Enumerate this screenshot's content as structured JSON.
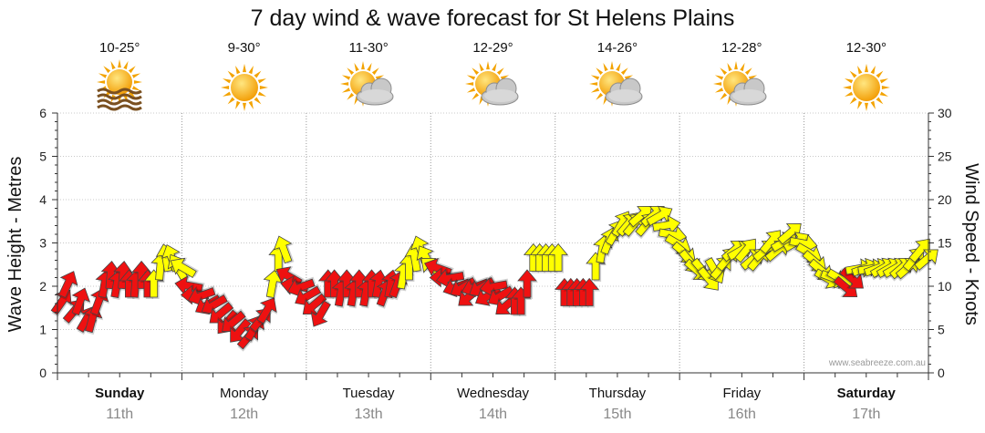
{
  "chart_data": {
    "type": "arrow-series",
    "title": "7 day wind & wave forecast for St Helens Plains",
    "ylabel_left": "Wave Height - Metres",
    "ylabel_right": "Wind Speed - Knots",
    "ylim_left": [
      0,
      6
    ],
    "ylim_right": [
      0,
      30
    ],
    "yticks_left": [
      "0",
      "1",
      "2",
      "3",
      "4",
      "5",
      "6"
    ],
    "yticks_right": [
      "0",
      "5",
      "10",
      "15",
      "20",
      "25",
      "30"
    ],
    "grid": true,
    "credit": "www.seabreeze.com.au",
    "days": [
      {
        "name": "Sunday",
        "date": "11th",
        "bold": true,
        "temp": "10-25°",
        "icon": "sun-fog-icon"
      },
      {
        "name": "Monday",
        "date": "12th",
        "bold": false,
        "temp": "9-30°",
        "icon": "sun-icon"
      },
      {
        "name": "Tuesday",
        "date": "13th",
        "bold": false,
        "temp": "11-30°",
        "icon": "sun-cloud-icon"
      },
      {
        "name": "Wednesday",
        "date": "14th",
        "bold": false,
        "temp": "12-29°",
        "icon": "sun-cloud-icon"
      },
      {
        "name": "Thursday",
        "date": "15th",
        "bold": false,
        "temp": "14-26°",
        "icon": "sun-cloud-icon"
      },
      {
        "name": "Friday",
        "date": "16th",
        "bold": false,
        "temp": "12-28°",
        "icon": "sun-cloud-icon"
      },
      {
        "name": "Saturday",
        "date": "17th",
        "bold": true,
        "temp": "12-30°",
        "icon": "sun-icon"
      }
    ],
    "series": [
      {
        "name": "Wind Speed (knots)",
        "colors": {
          "red": "#ee1111",
          "yellow": "#ffff00"
        },
        "points": [
          {
            "x": 0.05,
            "knots": 8,
            "dir": 35,
            "color": "red"
          },
          {
            "x": 0.15,
            "knots": 10,
            "dir": 25,
            "color": "red"
          },
          {
            "x": 0.25,
            "knots": 7,
            "dir": 40,
            "color": "red"
          },
          {
            "x": 0.35,
            "knots": 8,
            "dir": 20,
            "color": "red"
          },
          {
            "x": 0.45,
            "knots": 6,
            "dir": 30,
            "color": "red"
          },
          {
            "x": 0.55,
            "knots": 6,
            "dir": 15,
            "color": "red"
          },
          {
            "x": 0.65,
            "knots": 8,
            "dir": 20,
            "color": "red"
          },
          {
            "x": 0.75,
            "knots": 10,
            "dir": 10,
            "color": "red"
          },
          {
            "x": 0.85,
            "knots": 11,
            "dir": 5,
            "color": "red"
          },
          {
            "x": 0.95,
            "knots": 10,
            "dir": 10,
            "color": "red"
          },
          {
            "x": 1.05,
            "knots": 11,
            "dir": 5,
            "color": "red"
          },
          {
            "x": 1.15,
            "knots": 10,
            "dir": 0,
            "color": "red"
          },
          {
            "x": 1.25,
            "knots": 10,
            "dir": 5,
            "color": "red"
          },
          {
            "x": 1.35,
            "knots": 11,
            "dir": 0,
            "color": "red"
          },
          {
            "x": 1.45,
            "knots": 10,
            "dir": 0,
            "color": "red"
          },
          {
            "x": 1.55,
            "knots": 10,
            "dir": 0,
            "color": "yellow"
          },
          {
            "x": 1.65,
            "knots": 12,
            "dir": 5,
            "color": "yellow"
          },
          {
            "x": 1.75,
            "knots": 13,
            "dir": -10,
            "color": "yellow"
          },
          {
            "x": 1.85,
            "knots": 13,
            "dir": -20,
            "color": "yellow"
          },
          {
            "x": 1.95,
            "knots": 12,
            "dir": -30,
            "color": "yellow"
          },
          {
            "x": 2.05,
            "knots": 12,
            "dir": -60,
            "color": "yellow"
          },
          {
            "x": 2.15,
            "knots": 10,
            "dir": -80,
            "color": "red"
          },
          {
            "x": 2.25,
            "knots": 9,
            "dir": -90,
            "color": "red"
          },
          {
            "x": 2.35,
            "knots": 9,
            "dir": -110,
            "color": "red"
          },
          {
            "x": 2.45,
            "knots": 8,
            "dir": -120,
            "color": "red"
          },
          {
            "x": 2.55,
            "knots": 8,
            "dir": -120,
            "color": "red"
          },
          {
            "x": 2.65,
            "knots": 7,
            "dir": -130,
            "color": "red"
          },
          {
            "x": 2.75,
            "knots": 6,
            "dir": -140,
            "color": "red"
          },
          {
            "x": 2.85,
            "knots": 6,
            "dir": -130,
            "color": "red"
          },
          {
            "x": 2.95,
            "knots": 5,
            "dir": -140,
            "color": "red"
          },
          {
            "x": 3.05,
            "knots": 4,
            "dir": 40,
            "color": "red"
          },
          {
            "x": 3.15,
            "knots": 5,
            "dir": 30,
            "color": "red"
          },
          {
            "x": 3.25,
            "knots": 6,
            "dir": 40,
            "color": "red"
          },
          {
            "x": 3.35,
            "knots": 7,
            "dir": 30,
            "color": "red"
          },
          {
            "x": 3.45,
            "knots": 10,
            "dir": 10,
            "color": "yellow"
          },
          {
            "x": 3.55,
            "knots": 13,
            "dir": 0,
            "color": "yellow"
          },
          {
            "x": 3.65,
            "knots": 14,
            "dir": -20,
            "color": "yellow"
          },
          {
            "x": 3.75,
            "knots": 11,
            "dir": -60,
            "color": "red"
          },
          {
            "x": 3.85,
            "knots": 10,
            "dir": -80,
            "color": "red"
          },
          {
            "x": 3.95,
            "knots": 10,
            "dir": -110,
            "color": "red"
          },
          {
            "x": 4.05,
            "knots": 9,
            "dir": -120,
            "color": "red"
          },
          {
            "x": 4.15,
            "knots": 8,
            "dir": -130,
            "color": "red"
          },
          {
            "x": 4.25,
            "knots": 7,
            "dir": -150,
            "color": "red"
          },
          {
            "x": 4.35,
            "knots": 10,
            "dir": 0,
            "color": "red"
          },
          {
            "x": 4.45,
            "knots": 10,
            "dir": 0,
            "color": "red"
          },
          {
            "x": 4.55,
            "knots": 9,
            "dir": 10,
            "color": "red"
          },
          {
            "x": 4.65,
            "knots": 10,
            "dir": 0,
            "color": "red"
          },
          {
            "x": 4.75,
            "knots": 9,
            "dir": 10,
            "color": "red"
          },
          {
            "x": 4.85,
            "knots": 10,
            "dir": 0,
            "color": "red"
          },
          {
            "x": 4.95,
            "knots": 9,
            "dir": 10,
            "color": "red"
          },
          {
            "x": 5.05,
            "knots": 10,
            "dir": 0,
            "color": "red"
          },
          {
            "x": 5.15,
            "knots": 10,
            "dir": 10,
            "color": "red"
          },
          {
            "x": 5.25,
            "knots": 9,
            "dir": 20,
            "color": "red"
          },
          {
            "x": 5.35,
            "knots": 10,
            "dir": 10,
            "color": "red"
          },
          {
            "x": 5.45,
            "knots": 10,
            "dir": 20,
            "color": "red"
          },
          {
            "x": 5.55,
            "knots": 11,
            "dir": 10,
            "color": "yellow"
          },
          {
            "x": 5.65,
            "knots": 12,
            "dir": 0,
            "color": "yellow"
          },
          {
            "x": 5.75,
            "knots": 13,
            "dir": -10,
            "color": "yellow"
          },
          {
            "x": 5.85,
            "knots": 14,
            "dir": -20,
            "color": "yellow"
          },
          {
            "x": 5.95,
            "knots": 13,
            "dir": -30,
            "color": "yellow"
          },
          {
            "x": 6.05,
            "knots": 12,
            "dir": -50,
            "color": "yellow"
          },
          {
            "x": 6.15,
            "knots": 12,
            "dir": -70,
            "color": "red"
          },
          {
            "x": 6.25,
            "knots": 11,
            "dir": -90,
            "color": "red"
          },
          {
            "x": 6.35,
            "knots": 11,
            "dir": -100,
            "color": "red"
          },
          {
            "x": 6.45,
            "knots": 10,
            "dir": -110,
            "color": "red"
          },
          {
            "x": 6.55,
            "knots": 10,
            "dir": -120,
            "color": "red"
          },
          {
            "x": 6.65,
            "knots": 9,
            "dir": -130,
            "color": "red"
          },
          {
            "x": 6.75,
            "knots": 10,
            "dir": -110,
            "color": "red"
          },
          {
            "x": 6.85,
            "knots": 10,
            "dir": -120,
            "color": "red"
          },
          {
            "x": 6.95,
            "knots": 9,
            "dir": -120,
            "color": "red"
          },
          {
            "x": 7.05,
            "knots": 10,
            "dir": -100,
            "color": "red"
          },
          {
            "x": 7.15,
            "knots": 9,
            "dir": -120,
            "color": "red"
          },
          {
            "x": 7.25,
            "knots": 8,
            "dir": -130,
            "color": "red"
          },
          {
            "x": 7.35,
            "knots": 8,
            "dir": 0,
            "color": "red"
          },
          {
            "x": 7.45,
            "knots": 8,
            "dir": 0,
            "color": "red"
          },
          {
            "x": 7.55,
            "knots": 10,
            "dir": 0,
            "color": "red"
          },
          {
            "x": 7.65,
            "knots": 13,
            "dir": 0,
            "color": "yellow"
          },
          {
            "x": 7.75,
            "knots": 13,
            "dir": 0,
            "color": "yellow"
          },
          {
            "x": 7.85,
            "knots": 13,
            "dir": 0,
            "color": "yellow"
          },
          {
            "x": 7.95,
            "knots": 13,
            "dir": 0,
            "color": "yellow"
          },
          {
            "x": 8.05,
            "knots": 13,
            "dir": 0,
            "color": "yellow"
          },
          {
            "x": 8.15,
            "knots": 9,
            "dir": 0,
            "color": "red"
          },
          {
            "x": 8.25,
            "knots": 9,
            "dir": 0,
            "color": "red"
          },
          {
            "x": 8.35,
            "knots": 9,
            "dir": 0,
            "color": "red"
          },
          {
            "x": 8.45,
            "knots": 9,
            "dir": 0,
            "color": "red"
          },
          {
            "x": 8.55,
            "knots": 9,
            "dir": 0,
            "color": "red"
          },
          {
            "x": 8.65,
            "knots": 12,
            "dir": 0,
            "color": "yellow"
          },
          {
            "x": 8.75,
            "knots": 14,
            "dir": 10,
            "color": "yellow"
          },
          {
            "x": 8.85,
            "knots": 15,
            "dir": 20,
            "color": "yellow"
          },
          {
            "x": 8.95,
            "knots": 16,
            "dir": 30,
            "color": "yellow"
          },
          {
            "x": 9.05,
            "knots": 17,
            "dir": 30,
            "color": "yellow"
          },
          {
            "x": 9.15,
            "knots": 17,
            "dir": 40,
            "color": "yellow"
          },
          {
            "x": 9.25,
            "knots": 17,
            "dir": 40,
            "color": "yellow"
          },
          {
            "x": 9.35,
            "knots": 18,
            "dir": 50,
            "color": "yellow"
          },
          {
            "x": 9.45,
            "knots": 17,
            "dir": 40,
            "color": "yellow"
          },
          {
            "x": 9.55,
            "knots": 18,
            "dir": 50,
            "color": "yellow"
          },
          {
            "x": 9.65,
            "knots": 18,
            "dir": 60,
            "color": "yellow"
          },
          {
            "x": 9.75,
            "knots": 17,
            "dir": 80,
            "color": "yellow"
          },
          {
            "x": 9.85,
            "knots": 16,
            "dir": 100,
            "color": "yellow"
          },
          {
            "x": 9.95,
            "knots": 15,
            "dir": 120,
            "color": "yellow"
          },
          {
            "x": 10.05,
            "knots": 14,
            "dir": 130,
            "color": "yellow"
          },
          {
            "x": 10.15,
            "knots": 13,
            "dir": 140,
            "color": "yellow"
          },
          {
            "x": 10.25,
            "knots": 12,
            "dir": 130,
            "color": "yellow"
          },
          {
            "x": 10.35,
            "knots": 12,
            "dir": 140,
            "color": "yellow"
          },
          {
            "x": 10.45,
            "knots": 11,
            "dir": 140,
            "color": "yellow"
          },
          {
            "x": 10.55,
            "knots": 12,
            "dir": 150,
            "color": "yellow"
          },
          {
            "x": 10.65,
            "knots": 12,
            "dir": 40,
            "color": "yellow"
          },
          {
            "x": 10.75,
            "knots": 13,
            "dir": 40,
            "color": "yellow"
          },
          {
            "x": 10.85,
            "knots": 14,
            "dir": 50,
            "color": "yellow"
          },
          {
            "x": 10.95,
            "knots": 14,
            "dir": 60,
            "color": "yellow"
          },
          {
            "x": 11.05,
            "knots": 14,
            "dir": 40,
            "color": "yellow"
          },
          {
            "x": 11.15,
            "knots": 13,
            "dir": 50,
            "color": "yellow"
          },
          {
            "x": 11.25,
            "knots": 13,
            "dir": 40,
            "color": "yellow"
          },
          {
            "x": 11.35,
            "knots": 14,
            "dir": 50,
            "color": "yellow"
          },
          {
            "x": 11.45,
            "knots": 15,
            "dir": 40,
            "color": "yellow"
          },
          {
            "x": 11.55,
            "knots": 14,
            "dir": 50,
            "color": "yellow"
          },
          {
            "x": 11.65,
            "knots": 15,
            "dir": 60,
            "color": "yellow"
          },
          {
            "x": 11.75,
            "knots": 16,
            "dir": 50,
            "color": "yellow"
          },
          {
            "x": 11.85,
            "knots": 15,
            "dir": 60,
            "color": "yellow"
          },
          {
            "x": 11.95,
            "knots": 15,
            "dir": 100,
            "color": "yellow"
          },
          {
            "x": 12.05,
            "knots": 14,
            "dir": 120,
            "color": "yellow"
          },
          {
            "x": 12.15,
            "knots": 13,
            "dir": 130,
            "color": "yellow"
          },
          {
            "x": 12.25,
            "knots": 12,
            "dir": 130,
            "color": "yellow"
          },
          {
            "x": 12.35,
            "knots": 11,
            "dir": 120,
            "color": "yellow"
          },
          {
            "x": 12.45,
            "knots": 11,
            "dir": 110,
            "color": "yellow"
          },
          {
            "x": 12.55,
            "knots": 11,
            "dir": 120,
            "color": "yellow"
          },
          {
            "x": 12.65,
            "knots": 10,
            "dir": 130,
            "color": "red"
          },
          {
            "x": 12.75,
            "knots": 11,
            "dir": 130,
            "color": "red"
          },
          {
            "x": 12.85,
            "knots": 12,
            "dir": 80,
            "color": "yellow"
          },
          {
            "x": 12.95,
            "knots": 12,
            "dir": 70,
            "color": "yellow"
          },
          {
            "x": 13.05,
            "knots": 12,
            "dir": 80,
            "color": "yellow"
          },
          {
            "x": 13.15,
            "knots": 12,
            "dir": 70,
            "color": "yellow"
          },
          {
            "x": 13.25,
            "knots": 12,
            "dir": 60,
            "color": "yellow"
          },
          {
            "x": 13.35,
            "knots": 12,
            "dir": 60,
            "color": "yellow"
          },
          {
            "x": 13.45,
            "knots": 12,
            "dir": 60,
            "color": "yellow"
          },
          {
            "x": 13.55,
            "knots": 12,
            "dir": 50,
            "color": "yellow"
          },
          {
            "x": 13.65,
            "knots": 12,
            "dir": 50,
            "color": "yellow"
          },
          {
            "x": 13.75,
            "knots": 13,
            "dir": 40,
            "color": "yellow"
          },
          {
            "x": 13.85,
            "knots": 14,
            "dir": 40,
            "color": "yellow"
          },
          {
            "x": 13.95,
            "knots": 13,
            "dir": 50,
            "color": "yellow"
          }
        ]
      }
    ]
  }
}
